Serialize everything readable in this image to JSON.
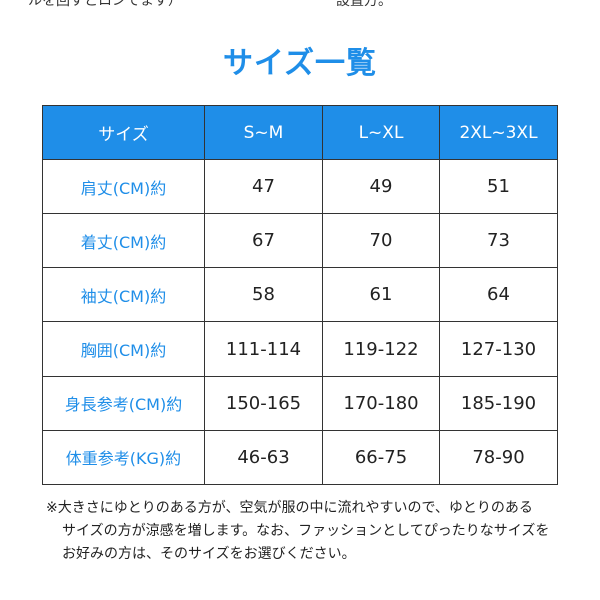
{
  "top_partial": {
    "left": "ルを回すとロンでます）",
    "right": "設置方。"
  },
  "title": "サイズ一覧",
  "table": {
    "headers": [
      "サイズ",
      "S~M",
      "L~XL",
      "2XL~3XL"
    ],
    "rows": [
      {
        "label": "肩丈(CM)約",
        "values": [
          "47",
          "49",
          "51"
        ]
      },
      {
        "label": "着丈(CM)約",
        "values": [
          "67",
          "70",
          "73"
        ]
      },
      {
        "label": "袖丈(CM)約",
        "values": [
          "58",
          "61",
          "64"
        ]
      },
      {
        "label": "胸囲(CM)約",
        "values": [
          "111-114",
          "119-122",
          "127-130"
        ]
      },
      {
        "label": "身長参考(CM)約",
        "values": [
          "150-165",
          "170-180",
          "185-190"
        ]
      },
      {
        "label": "体重参考(KG)約",
        "values": [
          "46-63",
          "66-75",
          "78-90"
        ]
      }
    ]
  },
  "note": {
    "line1": "※大きさにゆとりのある方が、空気が服の中に流れやすいので、ゆとりのある",
    "line2": "サイズの方が涼感を増します。なお、ファッションとしてぴったりなサイズを",
    "line3": "お好みの方は、そのサイズをお選びください。"
  },
  "colors": {
    "accent": "#1f8ee8",
    "border": "#333333",
    "text": "#222222"
  }
}
